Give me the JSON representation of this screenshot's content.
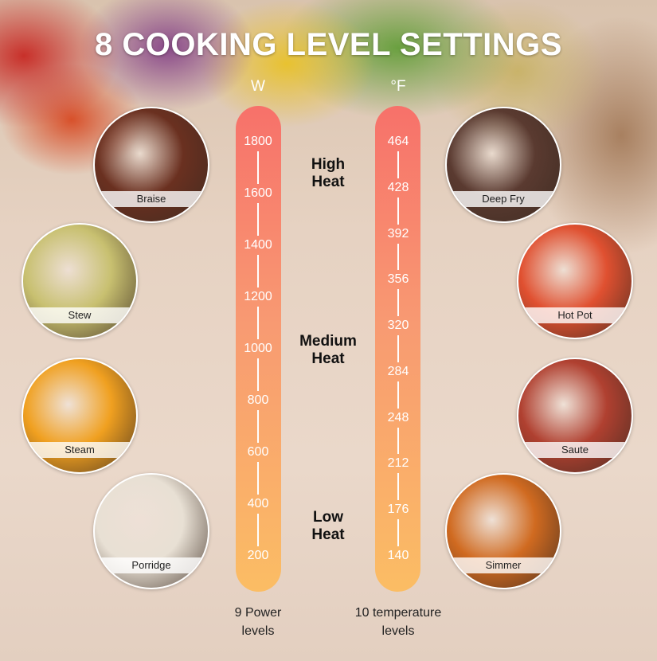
{
  "title": "8 COOKING LEVEL SETTINGS",
  "power": {
    "unit": "W",
    "ticks": [
      "1800",
      "1600",
      "1400",
      "1200",
      "1000",
      "800",
      "600",
      "400",
      "200"
    ],
    "footer_line1": "9 Power",
    "footer_line2": "levels"
  },
  "temperature": {
    "unit": "°F",
    "ticks": [
      "464",
      "428",
      "392",
      "356",
      "320",
      "284",
      "248",
      "212",
      "176",
      "140"
    ],
    "footer_line1": "10 temperature",
    "footer_line2": "levels"
  },
  "heat_levels": [
    {
      "line1": "High",
      "line2": "Heat"
    },
    {
      "line1": "Medium",
      "line2": "Heat"
    },
    {
      "line1": "Low",
      "line2": "Heat"
    }
  ],
  "left_modes": [
    {
      "label": "Braise",
      "color": "#6a3020"
    },
    {
      "label": "Stew",
      "color": "#c8c070"
    },
    {
      "label": "Steam",
      "color": "#f0a020"
    },
    {
      "label": "Porridge",
      "color": "#e8e0d4"
    }
  ],
  "right_modes": [
    {
      "label": "Deep Fry",
      "color": "#5a3a30"
    },
    {
      "label": "Hot Pot",
      "color": "#e05030"
    },
    {
      "label": "Saute",
      "color": "#b04030"
    },
    {
      "label": "Simmer",
      "color": "#d06a20"
    }
  ],
  "bar_colors": {
    "top": "#f7716a",
    "bottom": "#fbbd64"
  }
}
